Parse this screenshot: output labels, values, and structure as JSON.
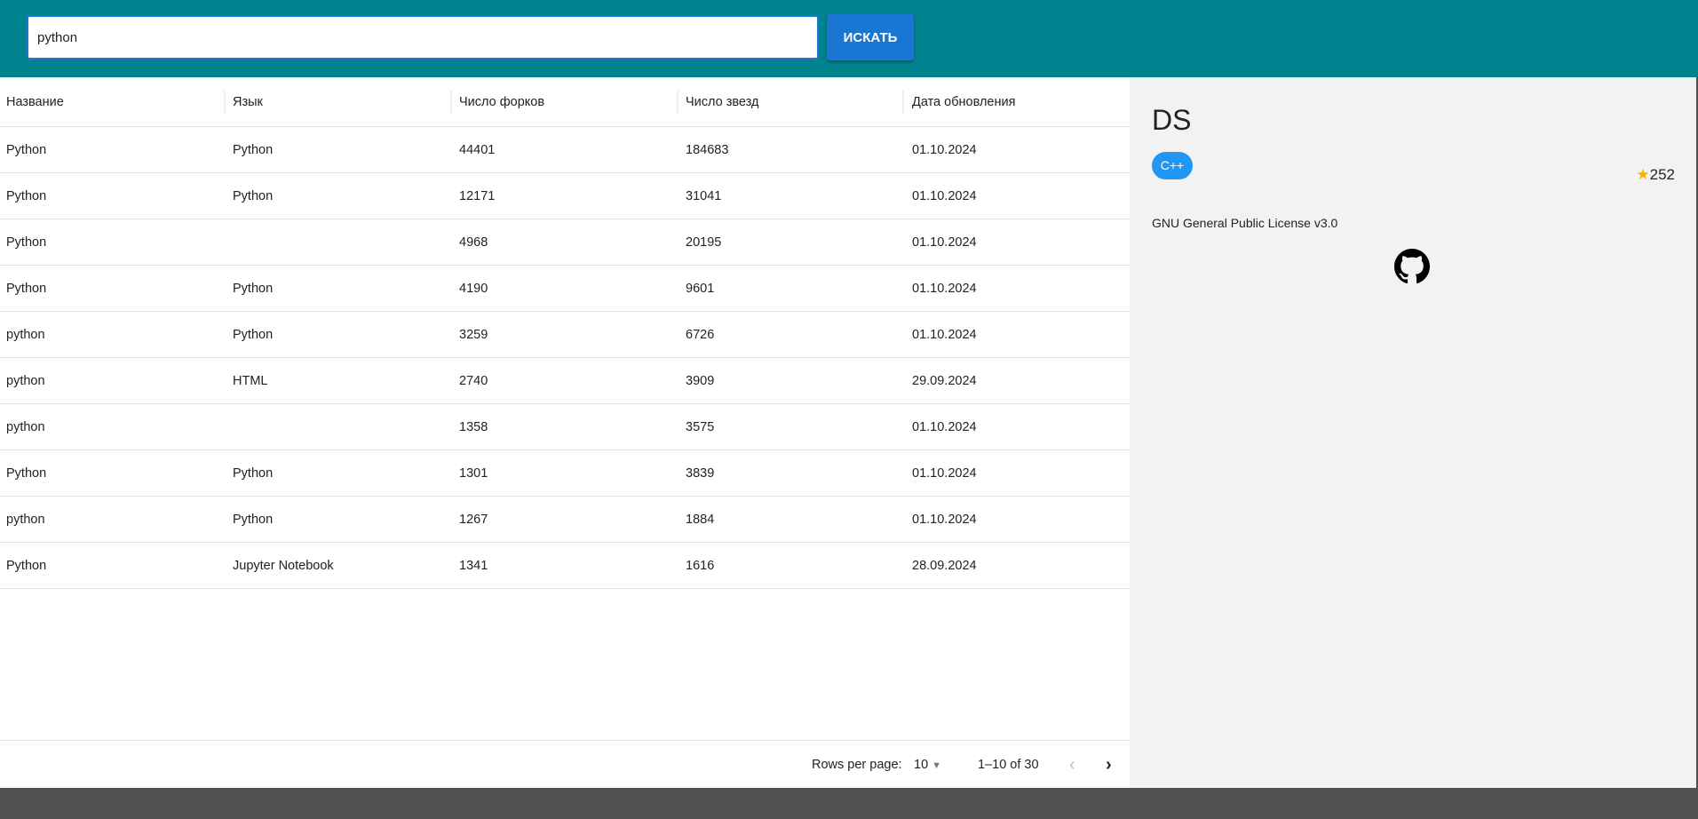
{
  "search": {
    "value": "python",
    "button": "ИСКАТЬ"
  },
  "table": {
    "columns": [
      "Название",
      "Язык",
      "Число форков",
      "Число звезд",
      "Дата обновления"
    ],
    "rows": [
      [
        "Python",
        "Python",
        "44401",
        "184683",
        "01.10.2024"
      ],
      [
        "Python",
        "Python",
        "12171",
        "31041",
        "01.10.2024"
      ],
      [
        "Python",
        "",
        "4968",
        "20195",
        "01.10.2024"
      ],
      [
        "Python",
        "Python",
        "4190",
        "9601",
        "01.10.2024"
      ],
      [
        "python",
        "Python",
        "3259",
        "6726",
        "01.10.2024"
      ],
      [
        "python",
        "HTML",
        "2740",
        "3909",
        "29.09.2024"
      ],
      [
        "python",
        "",
        "1358",
        "3575",
        "01.10.2024"
      ],
      [
        "Python",
        "Python",
        "1301",
        "3839",
        "01.10.2024"
      ],
      [
        "python",
        "Python",
        "1267",
        "1884",
        "01.10.2024"
      ],
      [
        "Python",
        "Jupyter Notebook",
        "1341",
        "1616",
        "28.09.2024"
      ]
    ]
  },
  "pagination": {
    "rows_label": "Rows per page:",
    "rows_value": "10",
    "range": "1–10 of 30"
  },
  "details": {
    "title": "DS",
    "language": "C++",
    "stars": "252",
    "license": "GNU General Public License v3.0",
    "icon": "github-icon"
  },
  "colors": {
    "header": "#00838f",
    "button": "#1976d2",
    "chip": "#2196f3",
    "star": "#f5b400"
  }
}
